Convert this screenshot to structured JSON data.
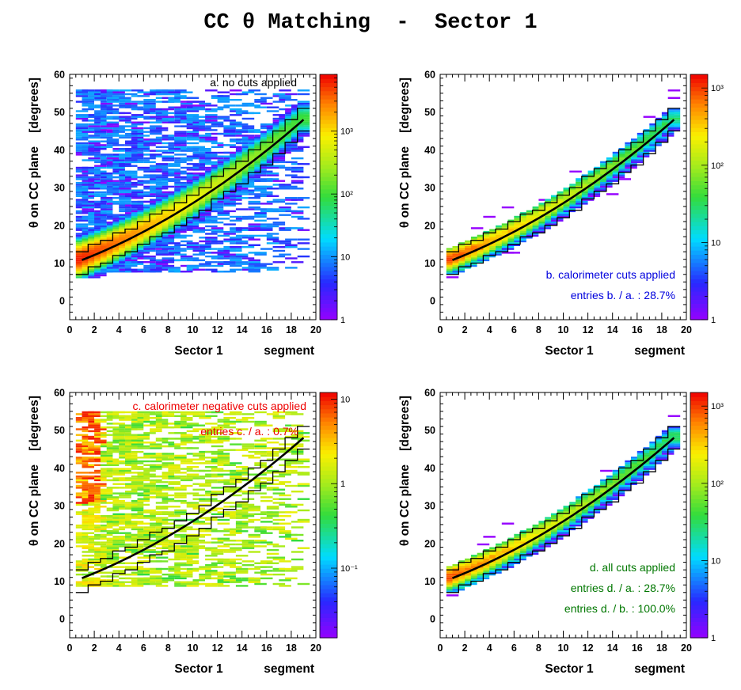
{
  "title": "CC θ Matching  -  Sector 1",
  "chart_data": [
    {
      "type": "heatmap",
      "xlabel": "Sector 1            segment",
      "ylabel": "θ on CC plane    [degrees]",
      "xlim": [
        0,
        20
      ],
      "ylim": [
        -5,
        60
      ],
      "xticks": [
        0,
        2,
        4,
        6,
        8,
        10,
        12,
        14,
        16,
        18,
        20
      ],
      "yticks": [
        0,
        10,
        20,
        30,
        40,
        50,
        60
      ],
      "z_scale": "log",
      "z_range": [
        1,
        8000
      ],
      "palette_ticks": [
        {
          "value": 1,
          "label": "1"
        },
        {
          "value": 10,
          "label": "10"
        },
        {
          "value": 100,
          "label": "10²"
        },
        {
          "value": 1000,
          "label": "10³"
        }
      ],
      "annotations": [
        {
          "text": "a. no cuts applied",
          "color": "#000000"
        }
      ],
      "distribution": "all",
      "fit_curve": {
        "segment": [
          1,
          19
        ],
        "theta": [
          10.8,
          48
        ]
      },
      "band": {
        "lower_offset": -3.5,
        "upper_offset": 2.5
      },
      "peak_cells": [
        {
          "segment": 1,
          "theta": 9,
          "level": "10³"
        },
        {
          "segment": 2,
          "theta": 10,
          "level": "10³"
        },
        {
          "segment": 8,
          "theta": 21,
          "level": "10²"
        }
      ]
    },
    {
      "type": "heatmap",
      "xlabel": "Sector 1            segment",
      "ylabel": "θ on CC plane    [degrees]",
      "xlim": [
        0,
        20
      ],
      "ylim": [
        -5,
        60
      ],
      "xticks": [
        0,
        2,
        4,
        6,
        8,
        10,
        12,
        14,
        16,
        18,
        20
      ],
      "yticks": [
        0,
        10,
        20,
        30,
        40,
        50,
        60
      ],
      "z_scale": "log",
      "z_range": [
        1,
        1500
      ],
      "palette_ticks": [
        {
          "value": 1,
          "label": "1"
        },
        {
          "value": 10,
          "label": "10"
        },
        {
          "value": 100,
          "label": "10²"
        },
        {
          "value": 1000,
          "label": "10³"
        }
      ],
      "annotations": [
        {
          "text": "b. calorimeter cuts applied",
          "color": "#0000dd"
        },
        {
          "text": "entries b. / a. : 28.7%",
          "color": "#0000dd"
        }
      ],
      "distribution": "band",
      "fit_curve": {
        "segment": [
          1,
          19
        ],
        "theta": [
          10.8,
          48
        ]
      },
      "band": {
        "lower_offset": -3.5,
        "upper_offset": 2.5
      }
    },
    {
      "type": "heatmap",
      "xlabel": "Sector 1            segment",
      "ylabel": "θ on CC plane    [degrees]",
      "xlim": [
        0,
        20
      ],
      "ylim": [
        -5,
        60
      ],
      "xticks": [
        0,
        2,
        4,
        6,
        8,
        10,
        12,
        14,
        16,
        18,
        20
      ],
      "yticks": [
        0,
        10,
        20,
        30,
        40,
        50,
        60
      ],
      "z_scale": "log",
      "z_range": [
        0.015,
        12
      ],
      "palette_ticks": [
        {
          "value": 0.1,
          "label": "10⁻¹"
        },
        {
          "value": 1,
          "label": "1"
        },
        {
          "value": 10,
          "label": "10"
        }
      ],
      "annotations": [
        {
          "text": "c. calorimeter negative cuts applied",
          "color": "#ee0000"
        },
        {
          "text": "entries c. / a. : 0.7%",
          "color": "#ee0000"
        }
      ],
      "distribution": "negative",
      "fit_curve": {
        "segment": [
          1,
          19
        ],
        "theta": [
          10.8,
          48
        ]
      },
      "band": {
        "lower_offset": -3.5,
        "upper_offset": 2.5
      }
    },
    {
      "type": "heatmap",
      "xlabel": "Sector 1            segment",
      "ylabel": "θ on CC plane    [degrees]",
      "xlim": [
        0,
        20
      ],
      "ylim": [
        -5,
        60
      ],
      "xticks": [
        0,
        2,
        4,
        6,
        8,
        10,
        12,
        14,
        16,
        18,
        20
      ],
      "yticks": [
        0,
        10,
        20,
        30,
        40,
        50,
        60
      ],
      "z_scale": "log",
      "z_range": [
        1,
        1500
      ],
      "palette_ticks": [
        {
          "value": 1,
          "label": "1"
        },
        {
          "value": 10,
          "label": "10"
        },
        {
          "value": 100,
          "label": "10²"
        },
        {
          "value": 1000,
          "label": "10³"
        }
      ],
      "annotations": [
        {
          "text": "d. all cuts applied",
          "color": "#007700"
        },
        {
          "text": "entries d. / a. : 28.7%",
          "color": "#007700"
        },
        {
          "text": "entries d. / b. : 100.0%",
          "color": "#007700"
        }
      ],
      "distribution": "band",
      "fit_curve": {
        "segment": [
          1,
          19
        ],
        "theta": [
          10.8,
          48
        ]
      },
      "band": {
        "lower_offset": -3.5,
        "upper_offset": 2.5
      }
    }
  ]
}
